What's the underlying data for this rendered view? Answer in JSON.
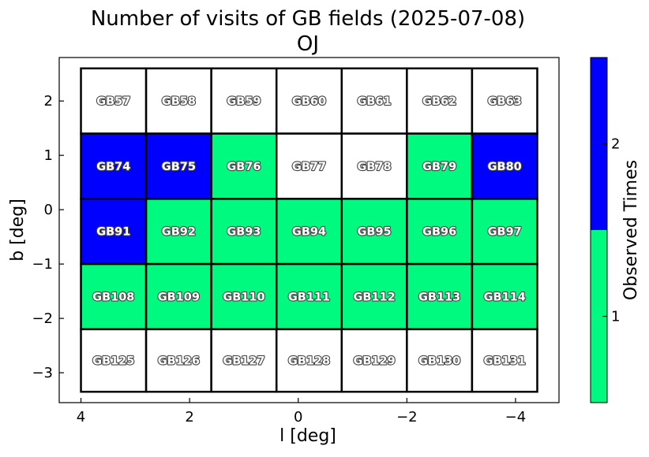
{
  "chart_data": {
    "type": "heatmap",
    "title": "Number of visits of GB fields (2025-07-08)",
    "subtitle": "OJ",
    "xlabel": "l [deg]",
    "ylabel": "b [deg]",
    "xlim": [
      4.4,
      -4.8
    ],
    "ylim": [
      -3.55,
      2.8
    ],
    "x_reversed": true,
    "x_ticks": [
      4,
      2,
      0,
      -2,
      -4
    ],
    "x_tick_labels": [
      "4",
      "2",
      "0",
      "−2",
      "−4"
    ],
    "y_ticks": [
      2,
      1,
      0,
      -1,
      -2,
      -3
    ],
    "y_tick_labels": [
      "2",
      "1",
      "0",
      "−1",
      "−2",
      "−3"
    ],
    "columns_l": [
      3.4,
      2.2,
      1.0,
      -0.2,
      -1.4,
      -2.6,
      -3.8
    ],
    "column_width": 1.2,
    "row_edges_b": [
      2.6,
      1.4,
      0.2,
      -1.0,
      -2.2,
      -3.35
    ],
    "rows": [
      {
        "fields": [
          "GB57",
          "GB58",
          "GB59",
          "GB60",
          "GB61",
          "GB62",
          "GB63"
        ],
        "visits": [
          0,
          0,
          0,
          0,
          0,
          0,
          0
        ]
      },
      {
        "fields": [
          "GB74",
          "GB75",
          "GB76",
          "GB77",
          "GB78",
          "GB79",
          "GB80"
        ],
        "visits": [
          2,
          2,
          1,
          0,
          0,
          1,
          2
        ]
      },
      {
        "fields": [
          "GB91",
          "GB92",
          "GB93",
          "GB94",
          "GB95",
          "GB96",
          "GB97"
        ],
        "visits": [
          2,
          1,
          1,
          1,
          1,
          1,
          1
        ]
      },
      {
        "fields": [
          "GB108",
          "GB109",
          "GB110",
          "GB111",
          "GB112",
          "GB113",
          "GB114"
        ],
        "visits": [
          1,
          1,
          1,
          1,
          1,
          1,
          1
        ]
      },
      {
        "fields": [
          "GB125",
          "GB126",
          "GB127",
          "GB128",
          "GB129",
          "GB130",
          "GB131"
        ],
        "visits": [
          0,
          0,
          0,
          0,
          0,
          0,
          0
        ]
      }
    ],
    "colorbar": {
      "label": "Observed Times",
      "ticks": [
        1,
        2
      ],
      "tick_labels": [
        "1",
        "2"
      ],
      "colors": {
        "0": "#ffffff",
        "1": "#00fa7f",
        "2": "#0000ff"
      }
    },
    "grid": false
  }
}
